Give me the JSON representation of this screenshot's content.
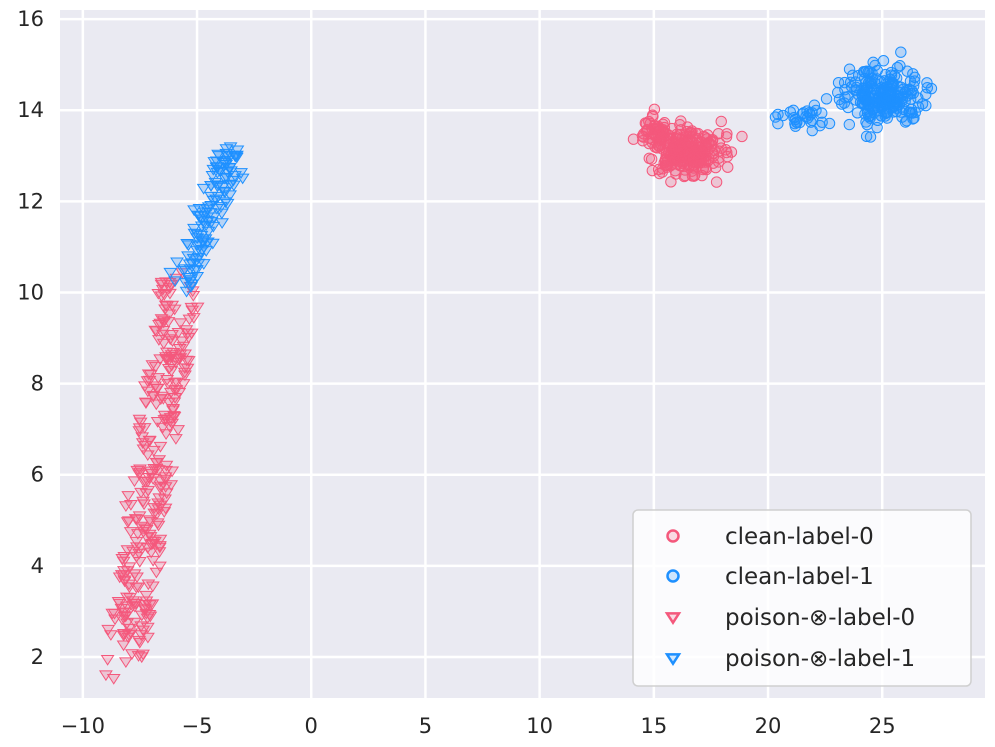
{
  "chart_data": {
    "type": "scatter",
    "title": "",
    "xlabel": "",
    "ylabel": "",
    "xlim": [
      -11,
      29.5
    ],
    "ylim": [
      1.1,
      16.2
    ],
    "xticks": [
      -10,
      -5,
      0,
      5,
      10,
      15,
      20,
      25
    ],
    "yticks": [
      2,
      4,
      6,
      8,
      10,
      12,
      14,
      16
    ],
    "xtick_labels": [
      "−10",
      "−5",
      "0",
      "5",
      "10",
      "15",
      "20",
      "25"
    ],
    "ytick_labels": [
      "2",
      "4",
      "6",
      "8",
      "10",
      "12",
      "14",
      "16"
    ],
    "grid": true,
    "legend_position": "lower-right",
    "series": [
      {
        "name": "clean-label-0",
        "marker": "circle",
        "color": "#f4587c",
        "clusters": [
          {
            "center": [
              16.5,
              13.1
            ],
            "spread": [
              1.5,
              0.5
            ],
            "count": 230
          },
          {
            "center": [
              15.1,
              13.6
            ],
            "spread": [
              0.6,
              0.35
            ],
            "count": 50
          }
        ]
      },
      {
        "name": "clean-label-1",
        "marker": "circle",
        "color": "#1e90ff",
        "clusters": [
          {
            "center": [
              25.0,
              14.3
            ],
            "spread": [
              1.6,
              0.55
            ],
            "count": 220
          },
          {
            "center": [
              21.5,
              13.8
            ],
            "spread": [
              1.0,
              0.25
            ],
            "count": 30
          }
        ]
      },
      {
        "name": "poison-⊗-label-0",
        "marker": "triangle-down",
        "color": "#f4587c",
        "band": {
          "start": [
            -8.2,
            1.9
          ],
          "end": [
            -5.7,
            10.2
          ],
          "half_width": 0.9,
          "count": 300
        }
      },
      {
        "name": "poison-⊗-label-1",
        "marker": "triangle-down",
        "color": "#1e90ff",
        "band": {
          "start": [
            -5.7,
            10.2
          ],
          "end": [
            -3.3,
            13.1
          ],
          "half_width": 0.55,
          "count": 120
        }
      }
    ]
  },
  "legend": {
    "items": [
      {
        "label": "clean-label-0",
        "marker": "circle",
        "color": "#f4587c"
      },
      {
        "label": "clean-label-1",
        "marker": "circle",
        "color": "#1e90ff"
      },
      {
        "label": "poison-⊗-label-0",
        "marker": "triangle-down",
        "color": "#f4587c"
      },
      {
        "label": "poison-⊗-label-1",
        "marker": "triangle-down",
        "color": "#1e90ff"
      }
    ]
  },
  "colors": {
    "plot_background": "#eaeaf2",
    "grid": "#ffffff"
  }
}
